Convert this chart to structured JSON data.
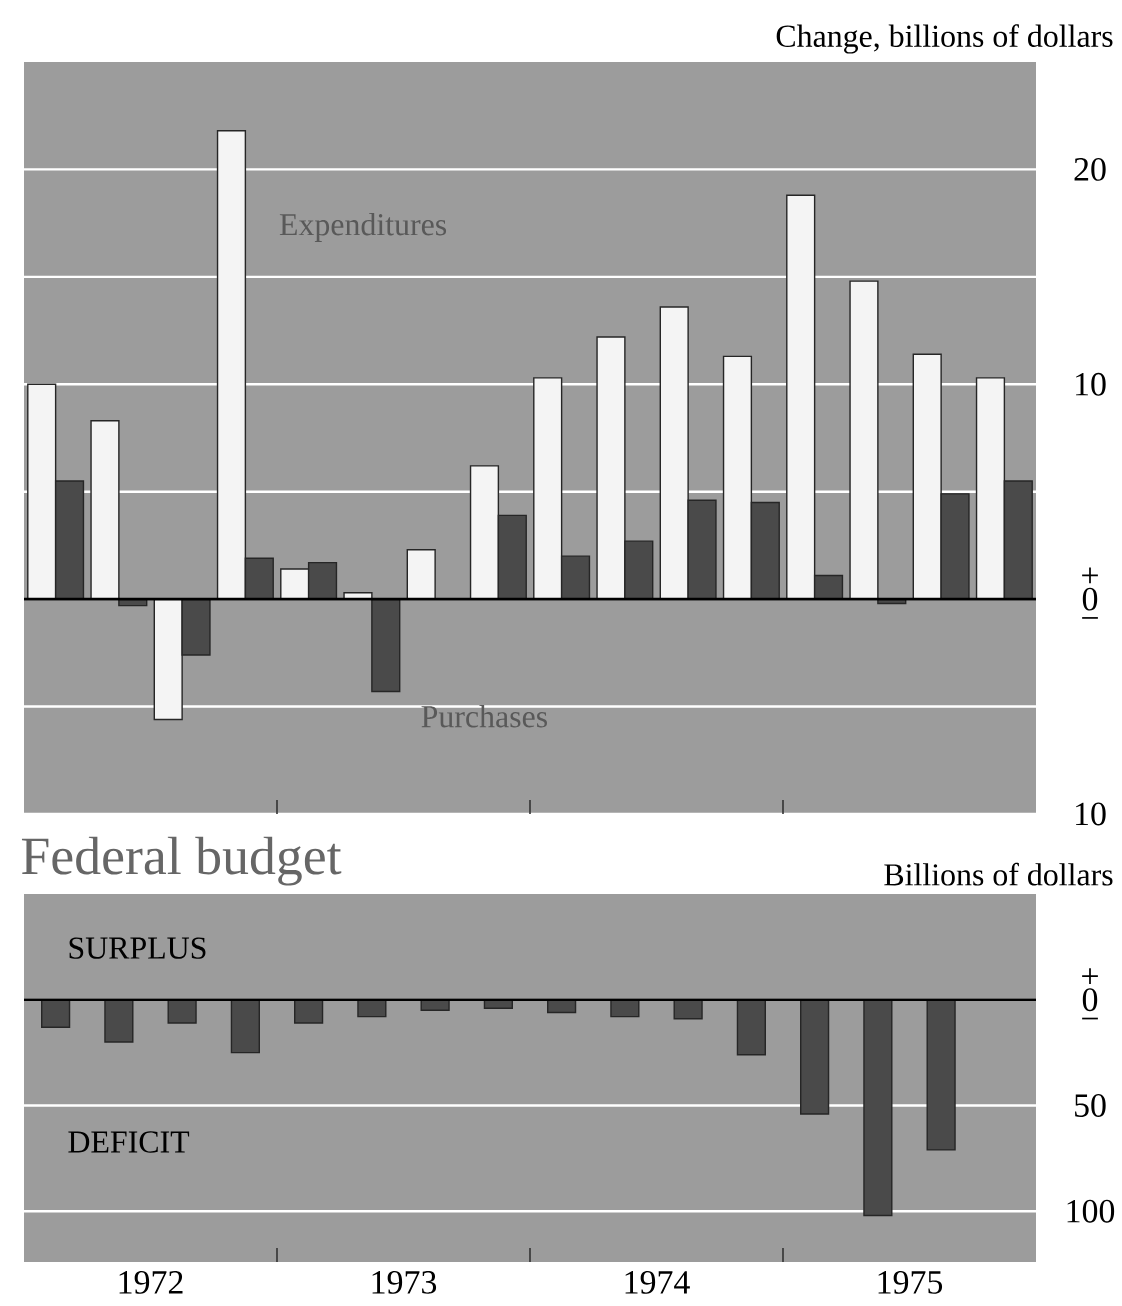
{
  "chart_data": [
    {
      "type": "bar",
      "ylabel": "Change, billions of dollars",
      "x": [
        1972.125,
        1972.375,
        1972.625,
        1972.875,
        1973.125,
        1973.375,
        1973.625,
        1973.875,
        1974.125,
        1974.375,
        1974.625,
        1974.875,
        1975.125,
        1975.375,
        1975.625,
        1975.875
      ],
      "series": [
        {
          "name": "Expenditures",
          "color": "#f4f4f4",
          "values": [
            10,
            8.3,
            -5.6,
            21.8,
            1.4,
            0.3,
            2.3,
            6.2,
            10.3,
            12.2,
            13.6,
            11.3,
            18.8,
            14.8,
            11.4,
            10.3
          ]
        },
        {
          "name": "Purchases",
          "color": "#4a4a4a",
          "values": [
            5.5,
            -0.3,
            -2.6,
            1.9,
            1.7,
            -4.3,
            null,
            3.9,
            2.0,
            2.7,
            4.6,
            4.5,
            1.1,
            -0.2,
            4.9,
            5.5
          ]
        }
      ],
      "xlim": [
        1972,
        1976
      ],
      "xticks": [
        {
          "value": 1973,
          "label": null
        },
        {
          "value": 1974,
          "label": null
        },
        {
          "value": 1975,
          "label": null
        }
      ],
      "ylim": [
        -10,
        25
      ],
      "yticks": [
        {
          "value": -10,
          "label": "10"
        },
        {
          "value": -5,
          "label": null
        },
        0,
        {
          "value": 5,
          "label": null
        },
        10,
        {
          "value": 15,
          "label": null
        },
        20
      ],
      "annotations": [
        "+",
        "−"
      ],
      "grid": "y",
      "tick_labels": "y"
    },
    {
      "type": "bar",
      "title": "Federal budget",
      "ylabel": "Billions of dollars",
      "x": [
        1972.125,
        1972.375,
        1972.625,
        1972.875,
        1973.125,
        1973.375,
        1973.625,
        1973.875,
        1974.125,
        1974.375,
        1974.625,
        1974.875,
        1975.125,
        1975.375,
        1975.625
      ],
      "values": [
        -13,
        -20,
        -11,
        -25,
        -11,
        -8,
        -5,
        -4,
        -6,
        -8,
        -9,
        -26,
        -54,
        -102,
        -71
      ],
      "color": "#4a4a4a",
      "xlim": [
        1972,
        1976
      ],
      "xticks": [
        {
          "value": 1972.5,
          "label": "1972"
        },
        {
          "value": 1973,
          "label": null
        },
        {
          "value": 1973.5,
          "label": "1973"
        },
        {
          "value": 1974,
          "label": null
        },
        {
          "value": 1974.5,
          "label": "1974"
        },
        {
          "value": 1975,
          "label": null
        },
        {
          "value": 1975.5,
          "label": "1975"
        }
      ],
      "ylim": [
        -124,
        50
      ],
      "yticks": [
        {
          "value": -100,
          "label": "100"
        },
        {
          "value": -50,
          "label": "50"
        },
        0
      ],
      "annotations": [
        "SURPLUS",
        "DEFICIT",
        "+",
        "−"
      ],
      "grid": "y"
    }
  ]
}
